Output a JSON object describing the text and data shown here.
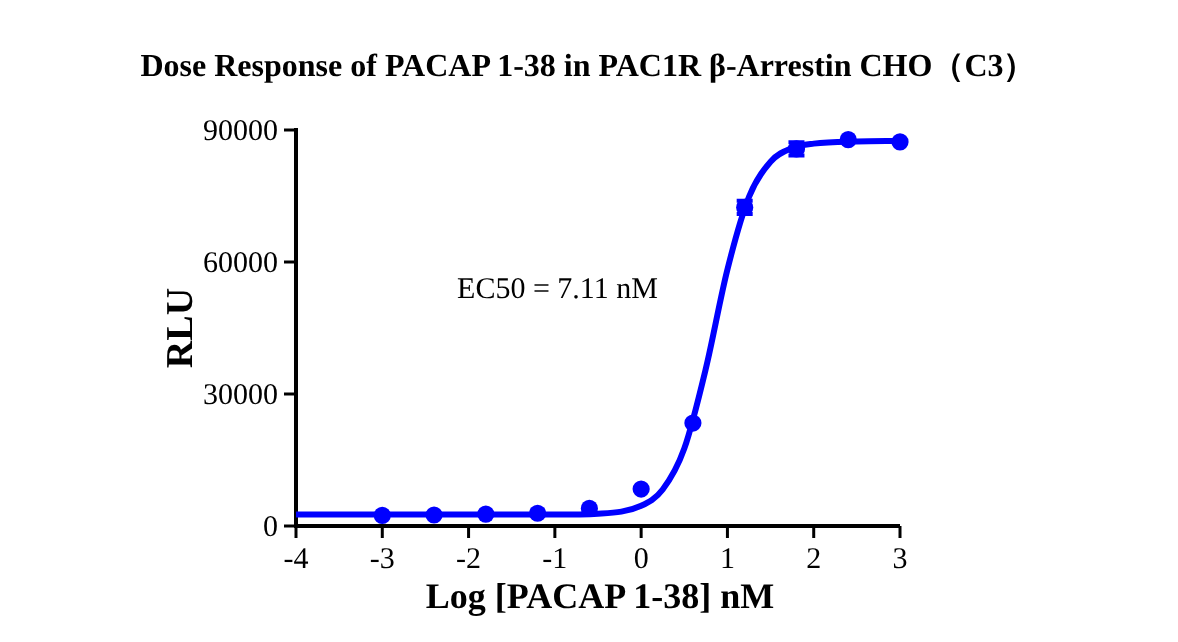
{
  "chart_data": {
    "type": "scatter",
    "title": "Dose Response of PACAP 1-38 in PAC1R β-Arrestin CHO（C3）",
    "xlabel": "Log [PACAP 1-38] nM",
    "ylabel": "RLU",
    "annotations": [
      "EC50 = 7.11 nM"
    ],
    "series": [
      {
        "color": "#0000ff",
        "marker": "circle",
        "x": [
          -3,
          -2.4,
          -1.8,
          -1.2,
          -0.6,
          0,
          0.6,
          1.2,
          1.8,
          2.4,
          3
        ],
        "values": [
          2400,
          2500,
          2700,
          2900,
          4000,
          8400,
          23400,
          72400,
          85700,
          87800,
          87300
        ],
        "errors": [
          null,
          null,
          null,
          null,
          null,
          null,
          null,
          1500,
          1500,
          null,
          null
        ]
      },
      {
        "type": "line",
        "color": "#0000ff",
        "x": [
          -4,
          -3,
          -2,
          -1,
          -0.5,
          0,
          0.25,
          0.5,
          0.75,
          1,
          1.25,
          1.5,
          1.75,
          2,
          2.5,
          3
        ],
        "values": [
          2600,
          2600,
          2600,
          2600,
          2800,
          4600,
          8300,
          17600,
          35800,
          58300,
          74800,
          82800,
          85900,
          86900,
          87400,
          87500
        ]
      }
    ],
    "xlim": [
      -4,
      3
    ],
    "xticks": [
      -4,
      -3,
      -2,
      -1,
      0,
      1,
      2,
      3
    ],
    "ylim": [
      0,
      90000
    ],
    "yticks": [
      0,
      30000,
      60000,
      90000
    ],
    "grid": false
  }
}
